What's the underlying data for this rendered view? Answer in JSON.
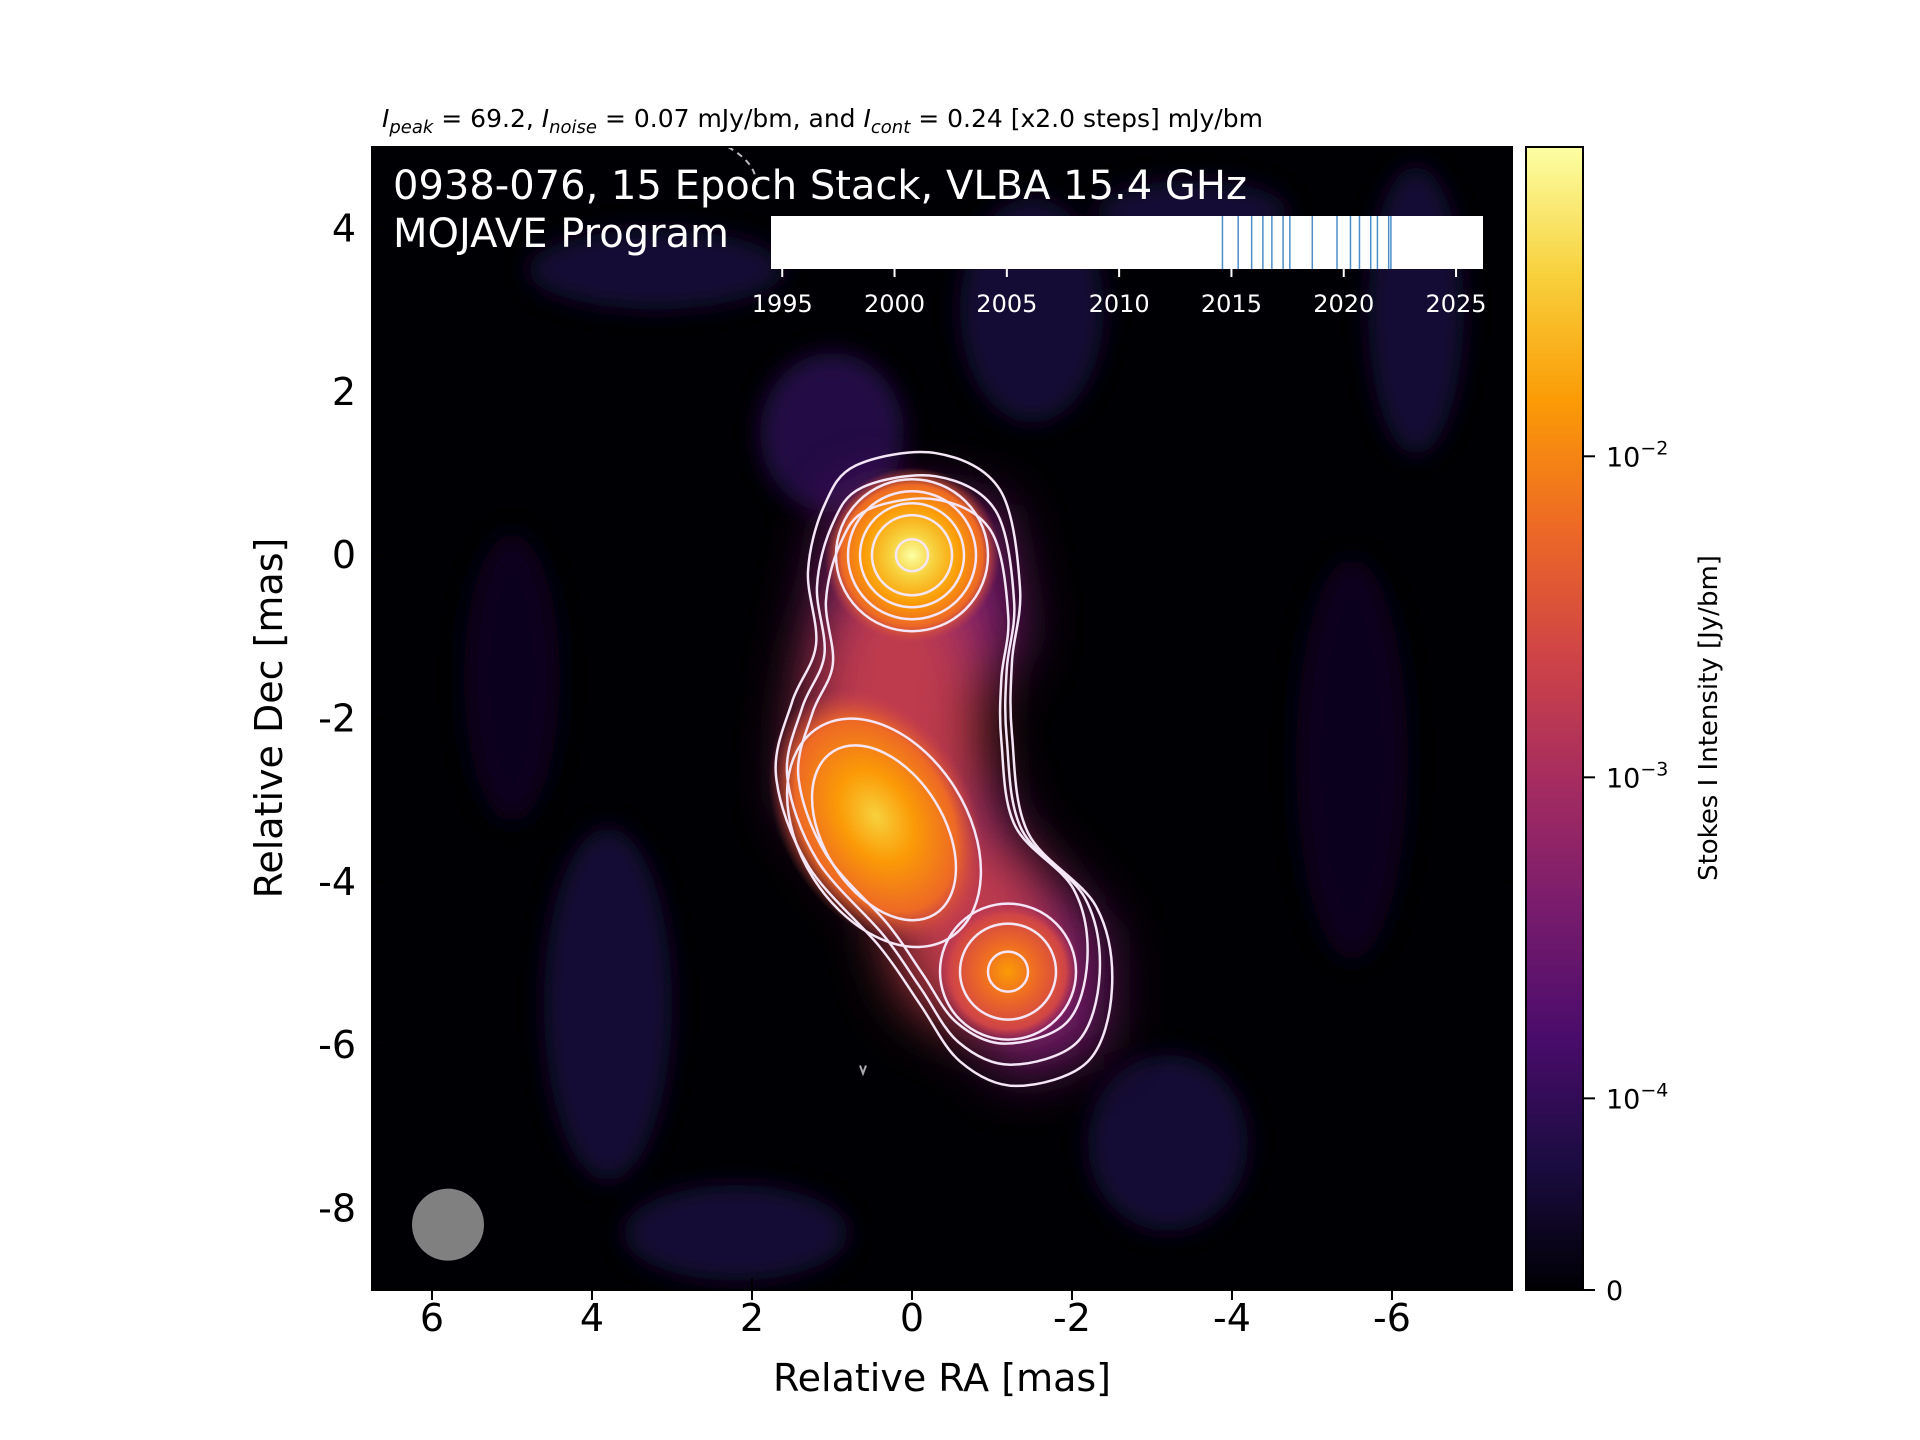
{
  "chart_data": {
    "type": "heatmap",
    "header": {
      "peak_sym": "I",
      "peak_sub": "peak",
      "peak_text": " = 69.2, ",
      "noise_sym": "I",
      "noise_sub": "noise",
      "noise_text": " = 0.07 mJy/bm, and ",
      "cont_sym": "I",
      "cont_sub": "cont",
      "cont_text": " = 0.24 [x2.0 steps] mJy/bm"
    },
    "title_line1": "0938-076, 15 Epoch Stack, VLBA 15.4 GHz",
    "title_line2": "MOJAVE Program",
    "xlabel": "Relative RA [mas]",
    "ylabel": "Relative Dec [mas]",
    "xlim": [
      6.75,
      -7.5
    ],
    "ylim": [
      -9.0,
      5.0
    ],
    "x_ticks": [
      6,
      4,
      2,
      0,
      -2,
      -4,
      -6
    ],
    "x_tick_labels": [
      "6",
      "4",
      "2",
      "0",
      "-2",
      "-4",
      "-6"
    ],
    "y_ticks": [
      4,
      2,
      0,
      -2,
      -4,
      -6,
      -8
    ],
    "y_tick_labels": [
      "4",
      "2",
      "0",
      "-2",
      "-4",
      "-6",
      "-8"
    ],
    "components": [
      {
        "x": 0.0,
        "y": 0.0,
        "peak_mjy": 69.2
      },
      {
        "x": 0.45,
        "y": -3.2,
        "peak_mjy": 20.0
      },
      {
        "x": -1.2,
        "y": -5.1,
        "peak_mjy": 8.0
      }
    ],
    "beam": {
      "x": 5.8,
      "y": -8.2,
      "major_mas": 0.9,
      "minor_mas": 0.9,
      "color": "#808080"
    },
    "contour_levels_mjy": [
      0.24,
      0.48,
      0.96,
      1.92,
      3.84,
      7.68,
      15.36,
      30.72,
      61.44
    ],
    "timeline": {
      "ticks": [
        1995,
        2000,
        2005,
        2010,
        2015,
        2020,
        2025
      ],
      "tick_labels": [
        "1995",
        "2000",
        "2005",
        "2010",
        "2015",
        "2020",
        "2025"
      ],
      "range": [
        1994.5,
        2026.2
      ],
      "epochs": [
        2014.6,
        2015.3,
        2015.9,
        2016.4,
        2016.8,
        2017.3,
        2017.6,
        2018.6,
        2019.7,
        2020.3,
        2020.7,
        2021.2,
        2021.5,
        2022.0,
        2022.1
      ],
      "epoch_color": "#4c8ec9"
    },
    "colorbar": {
      "label": "Stokes I Intensity [Jy/bm]",
      "scale": "log",
      "ticks": [
        {
          "value": 0.01,
          "base": "10",
          "exp": "−2"
        },
        {
          "value": 0.001,
          "base": "10",
          "exp": "−3"
        },
        {
          "value": 0.0001,
          "base": "10",
          "exp": "−4"
        },
        {
          "value": 0,
          "base": "0",
          "exp": ""
        }
      ],
      "colormap": "inferno",
      "colors": [
        "#000004",
        "#1b0c41",
        "#4a0c6b",
        "#781c6d",
        "#a52c60",
        "#cf4446",
        "#ed6925",
        "#fb9b06",
        "#f7d13d",
        "#fcffa4"
      ],
      "contour_color": "#f4e6f6"
    }
  }
}
